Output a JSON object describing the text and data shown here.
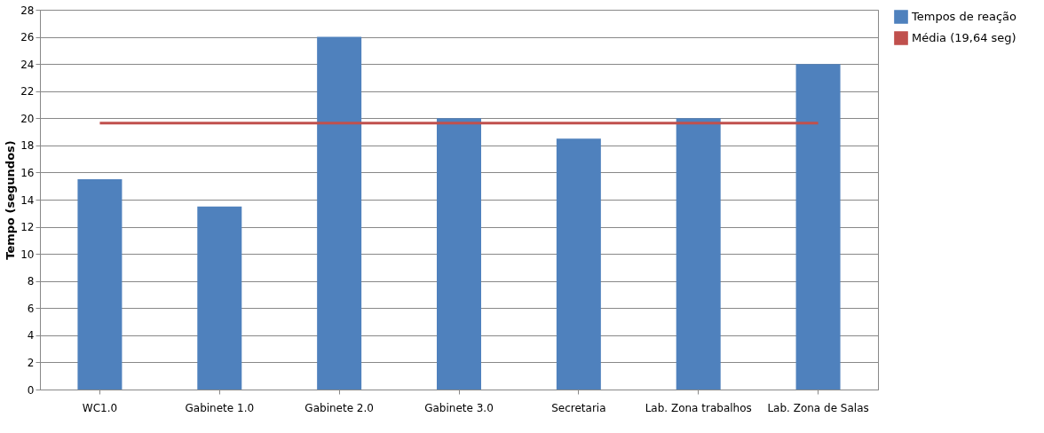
{
  "chart_data": {
    "type": "bar",
    "ylabel": "Tempo (segundos)",
    "categories": [
      "WC1.0",
      "Gabinete 1.0",
      "Gabinete 2.0",
      "Gabinete 3.0",
      "Secretaria",
      "Lab. Zona trabalhos",
      "Lab. Zona de Salas"
    ],
    "series": [
      {
        "name": "Tempos de reação",
        "color": "#4f81bd",
        "values": [
          15.5,
          13.5,
          26,
          20,
          18.5,
          20,
          24
        ]
      },
      {
        "name": "Média (19,64 seg)",
        "type": "line",
        "color": "#c0504d",
        "values": [
          19.64,
          19.64,
          19.64,
          19.64,
          19.64,
          19.64,
          19.64
        ]
      }
    ],
    "ylim": [
      0,
      28
    ],
    "yticks": [
      0,
      2,
      4,
      6,
      8,
      10,
      12,
      14,
      16,
      18,
      20,
      22,
      24,
      26,
      28
    ],
    "grid": "y",
    "legend": "right"
  }
}
